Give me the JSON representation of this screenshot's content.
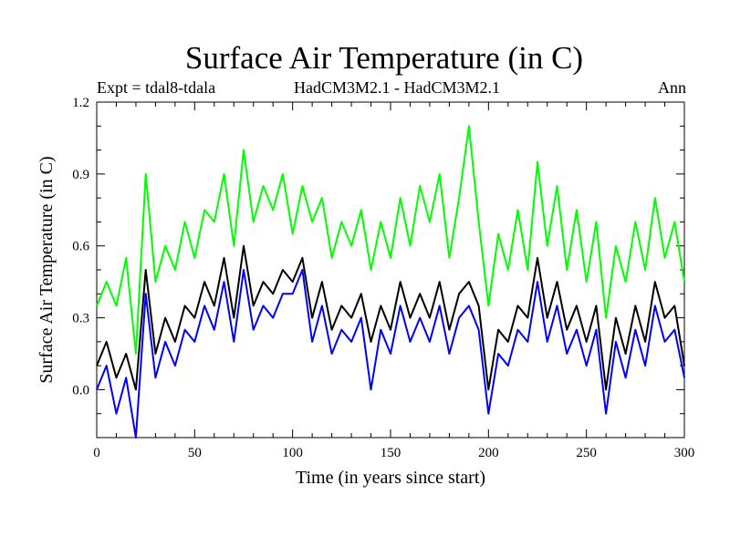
{
  "chart_data": {
    "type": "line",
    "title": "Surface Air Temperature (in C)",
    "subtitle_left": "Expt = tdal8-tdala",
    "subtitle_center": "HadCM3M2.1 - HadCM3M2.1",
    "subtitle_right": "Ann",
    "xlabel": "Time (in years since start)",
    "ylabel": "Surface Air Temperature (in C)",
    "xlim": [
      0,
      300
    ],
    "ylim": [
      -0.2,
      1.2
    ],
    "xticks": [
      0,
      50,
      100,
      150,
      200,
      250,
      300
    ],
    "xtick_labels": [
      "0",
      "50",
      "100",
      "150",
      "200",
      "250",
      "300"
    ],
    "yticks": [
      0.0,
      0.3,
      0.6,
      0.9,
      1.2
    ],
    "ytick_labels": [
      "0.0",
      "0.3",
      "0.6",
      "0.9",
      "1.2"
    ],
    "grid": false,
    "legend": "none",
    "series": [
      {
        "name": "green",
        "color": "#00ff00",
        "x": [
          0,
          5,
          10,
          15,
          20,
          25,
          30,
          35,
          40,
          45,
          50,
          55,
          60,
          65,
          70,
          75,
          80,
          85,
          90,
          95,
          100,
          105,
          110,
          115,
          120,
          125,
          130,
          135,
          140,
          145,
          150,
          155,
          160,
          165,
          170,
          175,
          180,
          185,
          190,
          195,
          200,
          205,
          210,
          215,
          220,
          225,
          230,
          235,
          240,
          245,
          250,
          255,
          260,
          265,
          270,
          275,
          280,
          285,
          290,
          295,
          300
        ],
        "values": [
          0.35,
          0.45,
          0.35,
          0.55,
          0.15,
          0.9,
          0.45,
          0.6,
          0.5,
          0.7,
          0.55,
          0.75,
          0.7,
          0.9,
          0.6,
          1.0,
          0.7,
          0.85,
          0.75,
          0.9,
          0.65,
          0.85,
          0.7,
          0.8,
          0.55,
          0.7,
          0.6,
          0.75,
          0.5,
          0.7,
          0.55,
          0.8,
          0.6,
          0.85,
          0.7,
          0.9,
          0.55,
          0.8,
          1.1,
          0.7,
          0.35,
          0.65,
          0.5,
          0.75,
          0.5,
          0.95,
          0.6,
          0.85,
          0.5,
          0.75,
          0.45,
          0.7,
          0.3,
          0.6,
          0.45,
          0.7,
          0.5,
          0.8,
          0.55,
          0.7,
          0.45
        ]
      },
      {
        "name": "black",
        "color": "#000000",
        "x": [
          0,
          5,
          10,
          15,
          20,
          25,
          30,
          35,
          40,
          45,
          50,
          55,
          60,
          65,
          70,
          75,
          80,
          85,
          90,
          95,
          100,
          105,
          110,
          115,
          120,
          125,
          130,
          135,
          140,
          145,
          150,
          155,
          160,
          165,
          170,
          175,
          180,
          185,
          190,
          195,
          200,
          205,
          210,
          215,
          220,
          225,
          230,
          235,
          240,
          245,
          250,
          255,
          260,
          265,
          270,
          275,
          280,
          285,
          290,
          295,
          300
        ],
        "values": [
          0.1,
          0.2,
          0.05,
          0.15,
          0.0,
          0.5,
          0.15,
          0.3,
          0.2,
          0.35,
          0.3,
          0.45,
          0.35,
          0.55,
          0.3,
          0.6,
          0.35,
          0.45,
          0.4,
          0.5,
          0.45,
          0.55,
          0.3,
          0.45,
          0.25,
          0.35,
          0.3,
          0.4,
          0.2,
          0.35,
          0.25,
          0.45,
          0.3,
          0.4,
          0.3,
          0.45,
          0.25,
          0.4,
          0.45,
          0.35,
          0.0,
          0.25,
          0.2,
          0.35,
          0.3,
          0.55,
          0.3,
          0.45,
          0.25,
          0.35,
          0.2,
          0.35,
          0.0,
          0.3,
          0.15,
          0.35,
          0.2,
          0.45,
          0.3,
          0.35,
          0.1
        ]
      },
      {
        "name": "blue",
        "color": "#0000ff",
        "x": [
          0,
          5,
          10,
          15,
          20,
          25,
          30,
          35,
          40,
          45,
          50,
          55,
          60,
          65,
          70,
          75,
          80,
          85,
          90,
          95,
          100,
          105,
          110,
          115,
          120,
          125,
          130,
          135,
          140,
          145,
          150,
          155,
          160,
          165,
          170,
          175,
          180,
          185,
          190,
          195,
          200,
          205,
          210,
          215,
          220,
          225,
          230,
          235,
          240,
          245,
          250,
          255,
          260,
          265,
          270,
          275,
          280,
          285,
          290,
          295,
          300
        ],
        "values": [
          0.0,
          0.1,
          -0.1,
          0.05,
          -0.2,
          0.4,
          0.05,
          0.2,
          0.1,
          0.25,
          0.2,
          0.35,
          0.25,
          0.45,
          0.2,
          0.5,
          0.25,
          0.35,
          0.3,
          0.4,
          0.4,
          0.5,
          0.2,
          0.35,
          0.15,
          0.25,
          0.2,
          0.3,
          0.0,
          0.25,
          0.15,
          0.35,
          0.2,
          0.3,
          0.2,
          0.35,
          0.15,
          0.3,
          0.35,
          0.25,
          -0.1,
          0.15,
          0.1,
          0.25,
          0.2,
          0.45,
          0.2,
          0.35,
          0.15,
          0.25,
          0.1,
          0.25,
          -0.1,
          0.2,
          0.05,
          0.25,
          0.1,
          0.35,
          0.2,
          0.25,
          0.05
        ]
      }
    ]
  }
}
